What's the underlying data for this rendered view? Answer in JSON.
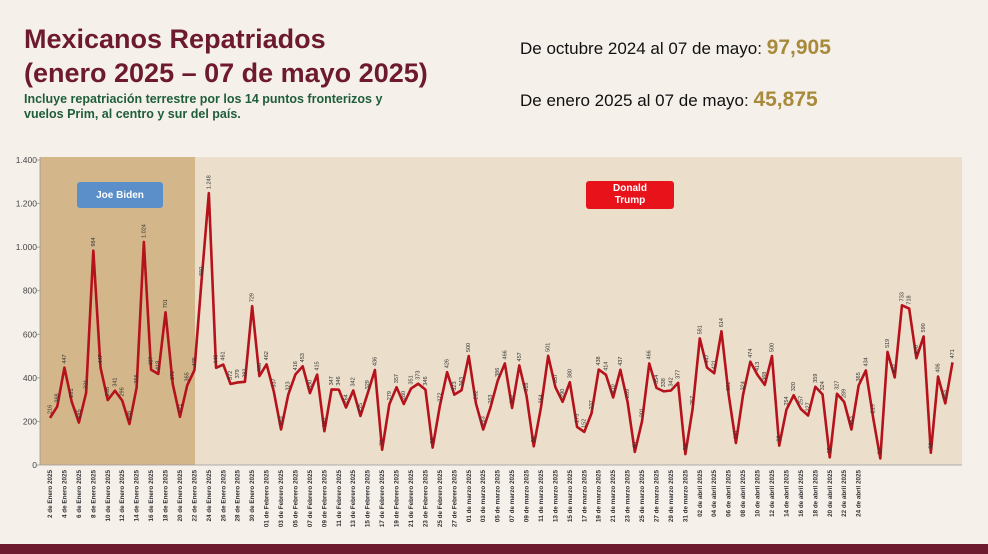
{
  "header": {
    "title_lines": [
      "Mexicanos Repatriados",
      "(enero 2025 – 07 de mayo 2025)"
    ],
    "subtitle_lines": [
      "Incluye repatriación terrestre por los 14  puntos fronterizos y",
      "vuelos Prim, al centro y sur del país."
    ],
    "stats": [
      {
        "label": "De octubre 2024 al 07 de mayo:",
        "value": "97,905"
      },
      {
        "label": "De enero 2025 al 07 de mayo:",
        "value": "45,875"
      }
    ]
  },
  "chart_data": {
    "type": "line",
    "color": "#b5121b",
    "annotations": [
      "Joe Biden",
      "Donald Trump"
    ],
    "ylim": [
      0,
      1400
    ],
    "yticks": [
      0,
      200,
      400,
      600,
      800,
      {
        "value": 1000,
        "label": "1.000"
      },
      {
        "value": 1200,
        "label": "1.200"
      },
      {
        "value": 1400,
        "label": "1.400"
      }
    ],
    "categories": [
      "2 de Enero 2025",
      null,
      "4 de Enero 2025",
      null,
      "6 de Enero 2025",
      null,
      "8 de Enero 2025",
      null,
      "10 de Enero 2025",
      null,
      "12 de Enero 2025",
      null,
      "14 de Enero 2025",
      null,
      "16 de Enero 2025",
      null,
      "18 de Enero 2025",
      null,
      "20 de Enero 2025",
      null,
      "22 de Enero 2025",
      null,
      "24 de Enero 2025",
      null,
      "26 de Enero 2025",
      null,
      "28 de Enero 2025",
      null,
      "30 de Enero 2025",
      null,
      "01 de Febrero 2025",
      null,
      "03 de Febrero 2025",
      null,
      "05 de Febrero 2025",
      null,
      "07 de Febrero 2025",
      null,
      "09 de Febrero 2025",
      null,
      "11 de Febrero 2025",
      null,
      "13 de Febrero 2025",
      null,
      "15 de Febrero 2025",
      null,
      "17 de Febrero 2025",
      null,
      "19 de Febrero 2025",
      null,
      "21 de Febrero 2025",
      null,
      "23 de Febrero 2025",
      null,
      "25 de Febrero 2025",
      null,
      "27 de Febrero 2025",
      null,
      "01 de marzo 2025",
      null,
      "03 de marzo 2025",
      null,
      "05 de marzo 2025",
      null,
      "07 de marzo 2025",
      null,
      "09 de marzo 2025",
      null,
      "11 de marzo 2025",
      null,
      "13 de marzo 2025",
      null,
      "15 de marzo 2025",
      null,
      "17 de marzo 2025",
      null,
      "19 de marzo 2025",
      null,
      "21 de marzo 2025",
      null,
      "23 de marzo 2025",
      null,
      "25 de marzo 2025",
      null,
      "27 de marzo 2025",
      null,
      "29 de marzo 2025",
      null,
      "31 de marzo 2025",
      null,
      "02 de abril 2025",
      null,
      "04 de abril 2025",
      null,
      "06 de abril 2025",
      null,
      "08 de abril 2025",
      null,
      "10 de abril 2025",
      null,
      "12 de abril 2025",
      null,
      "14 de abril 2025",
      null,
      "16 de abril 2025",
      null,
      "18 de abril 2025",
      null,
      "20 de abril 2025",
      null,
      "22 de abril 2025",
      null,
      "24 de abril 2025",
      null,
      null,
      null,
      null,
      null,
      null,
      null,
      null,
      null,
      null,
      null,
      null,
      null
    ],
    "values": [
      216,
      268,
      447,
      291,
      195,
      331,
      984,
      447,
      298,
      341,
      296,
      188,
      356,
      1024,
      437,
      418,
      701,
      372,
      221,
      365,
      435,
      850,
      1248,
      446,
      461,
      372,
      379,
      382,
      729,
      408,
      462,
      337,
      163,
      323,
      416,
      453,
      330,
      415,
      155,
      347,
      346,
      264,
      342,
      225,
      329,
      436,
      70,
      279,
      357,
      280,
      351,
      373,
      346,
      80,
      272,
      426,
      323,
      343,
      500,
      282,
      163,
      263,
      386,
      466,
      262,
      457,
      318,
      86,
      264,
      501,
      357,
      290,
      380,
      175,
      152,
      237,
      438,
      414,
      310,
      437,
      289,
      60,
      201,
      466,
      354,
      338,
      342,
      377,
      50,
      257,
      581,
      447,
      421,
      614,
      322,
      101,
      324,
      474,
      413,
      368,
      500,
      89,
      254,
      320,
      257,
      227,
      359,
      324,
      35,
      327,
      289,
      163,
      365,
      434,
      219,
      30,
      519,
      402,
      733,
      718,
      490,
      590,
      56,
      406,
      283,
      471
    ],
    "value_labels": [
      "216",
      "268",
      "447",
      "291",
      "195",
      "331",
      "984",
      "447",
      "298",
      "341",
      "296",
      "188",
      "356",
      "1.024",
      "437",
      "418",
      "701",
      "372",
      "221",
      "365",
      "435",
      "850",
      "1.248",
      "446",
      "461",
      "372",
      "379",
      "382",
      "729",
      "408",
      "462",
      "337",
      "163",
      "323",
      "416",
      "453",
      "330",
      "415",
      "155",
      "347",
      "346",
      "264",
      "342",
      "225",
      "329",
      "436",
      "70",
      "279",
      "357",
      "280",
      "351",
      "373",
      "346",
      "80",
      "272",
      "426",
      "323",
      "343",
      "500",
      "282",
      "163",
      "263",
      "386",
      "466",
      "262",
      "457",
      "318",
      "86",
      "264",
      "501",
      "357",
      "290",
      "380",
      "175",
      "152",
      "237",
      "438",
      "414",
      "310",
      "437",
      "289",
      "60",
      "201",
      "466",
      "354",
      "338",
      "342",
      "377",
      "50",
      "257",
      "581",
      "447",
      "421",
      "614",
      "322",
      "101",
      "324",
      "474",
      "413",
      "368",
      "500",
      "89",
      "254",
      "320",
      "257",
      "227",
      "359",
      "324",
      "35",
      "327",
      "289",
      "163",
      "365",
      "434",
      "219",
      "30",
      "519",
      "402",
      "733",
      "718",
      "490",
      "590",
      "56",
      "406",
      "283",
      "471"
    ]
  }
}
